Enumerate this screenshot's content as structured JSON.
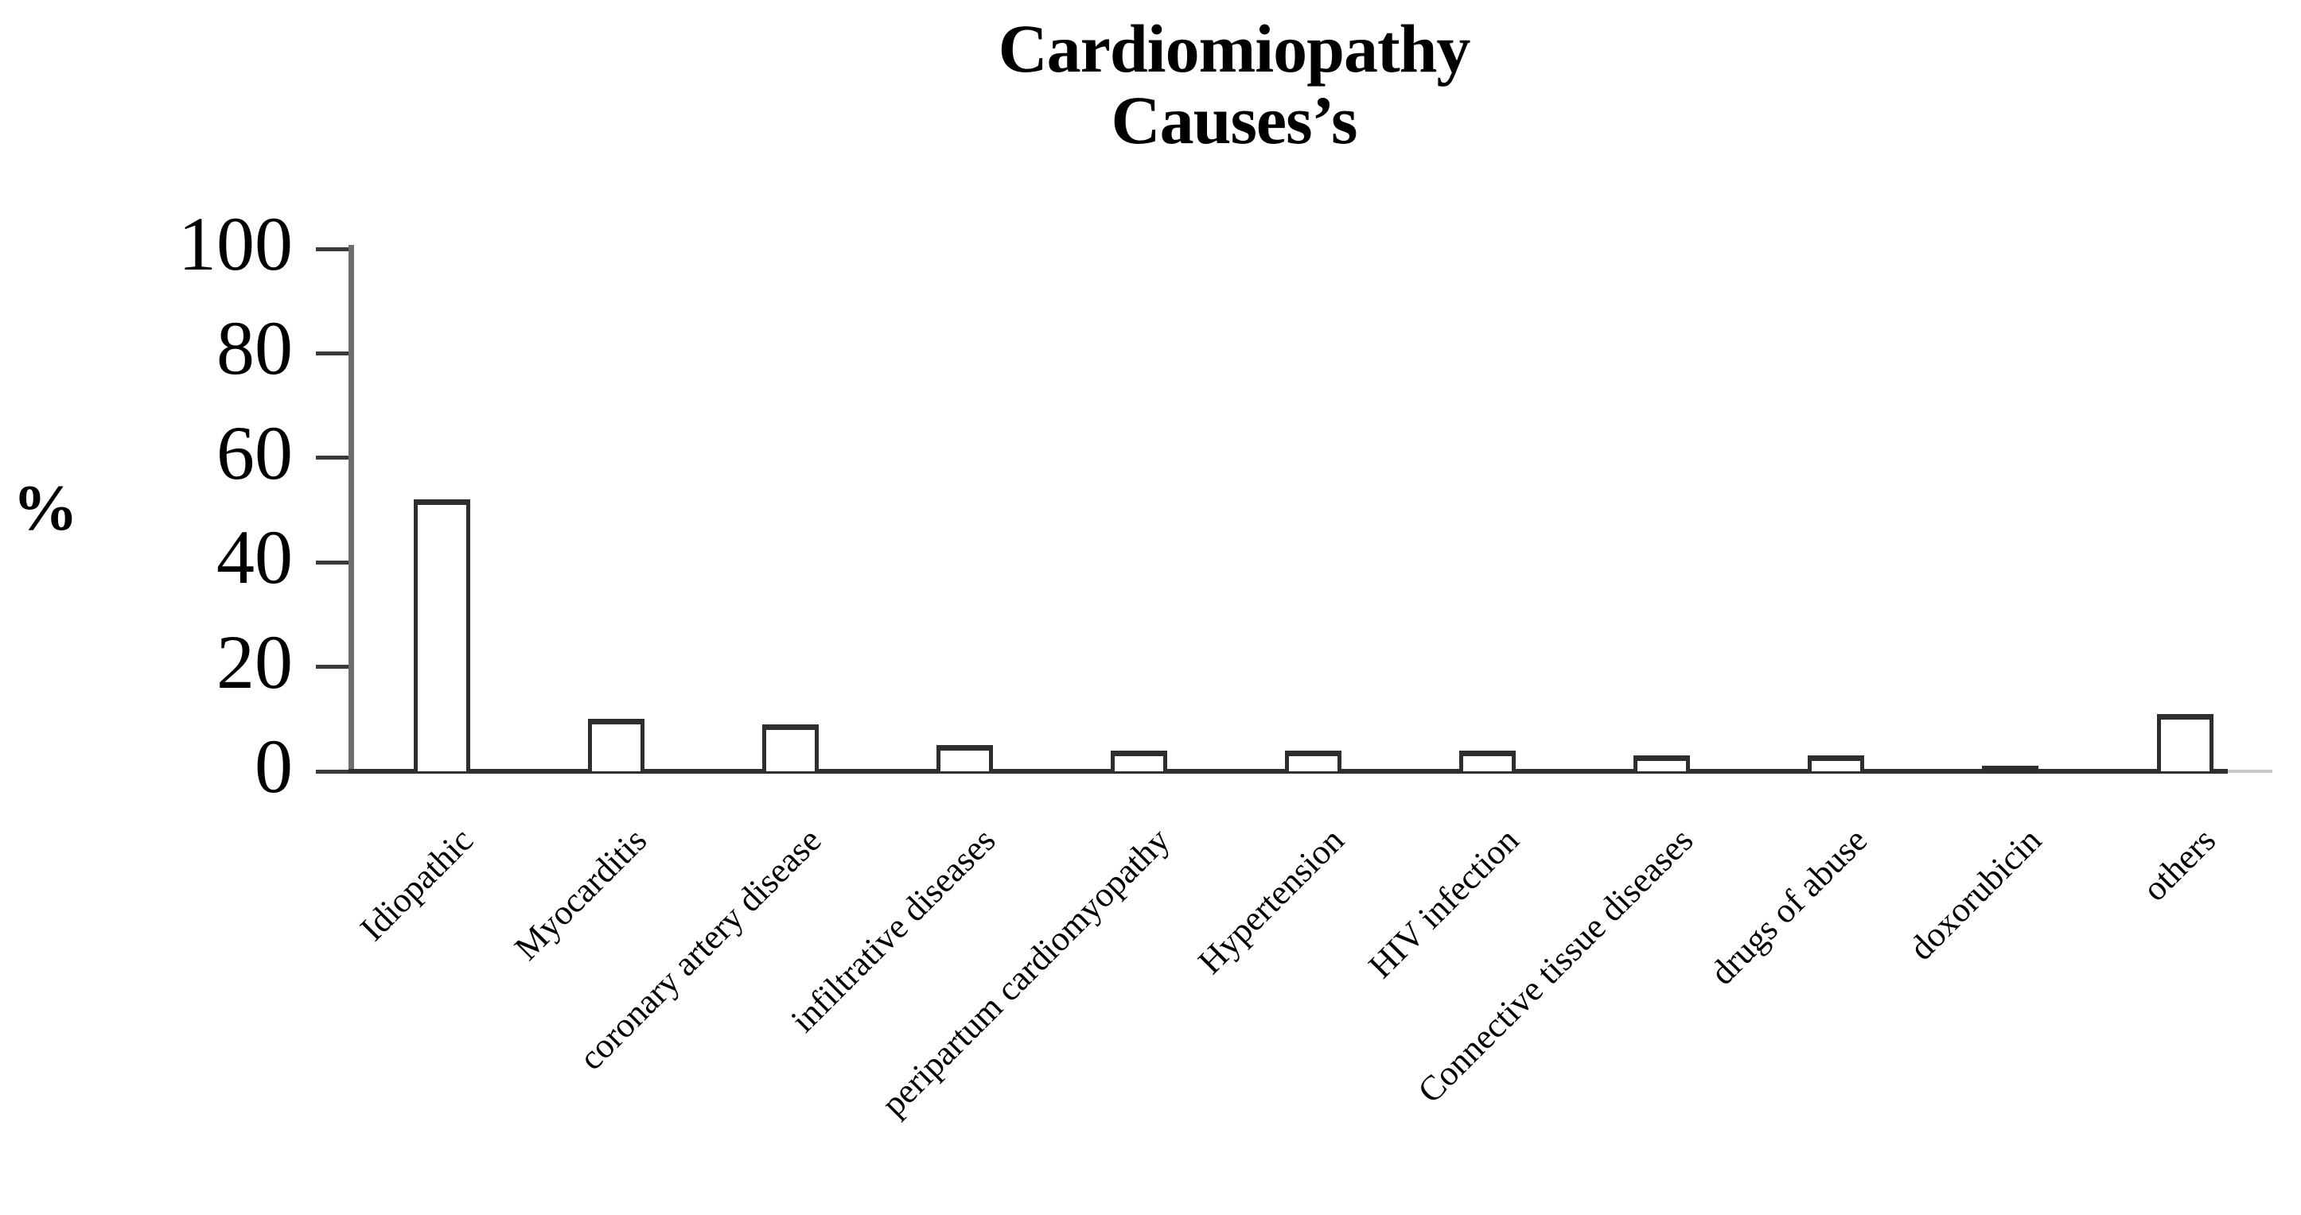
{
  "page": {
    "background": "#ffffff"
  },
  "chart_data": {
    "type": "bar",
    "title": "Cardiomiopathy Causes's",
    "title_lines": [
      "Cardiomiopathy",
      "Causes’s"
    ],
    "ylabel": "%",
    "xlabel": "",
    "categories": [
      "Idiopathic",
      "Myocarditis",
      "coronary artery disease",
      "infiltrative diseases",
      "peripartum cardiomyopathy",
      "Hypertension",
      "HIV infection",
      "Connective tissue diseases",
      "drugs of abuse",
      "doxorubicin",
      "others"
    ],
    "values": [
      52,
      10,
      9,
      5,
      4,
      4,
      4,
      3,
      3,
      1,
      11
    ],
    "yticks": [
      0,
      20,
      40,
      60,
      80,
      100
    ],
    "ylim": [
      0,
      100
    ],
    "grid": "off",
    "legend": "none",
    "x_label_rotation_deg": 45,
    "bar_fill": "#ffffff",
    "bar_border_color": "#2e2e2e",
    "y_axis_line_color": "#6e6e6e",
    "x_axis_line_color": "#2f2f2f",
    "tick_mark_color": "#3a3a3a",
    "text_color": "#000000"
  }
}
